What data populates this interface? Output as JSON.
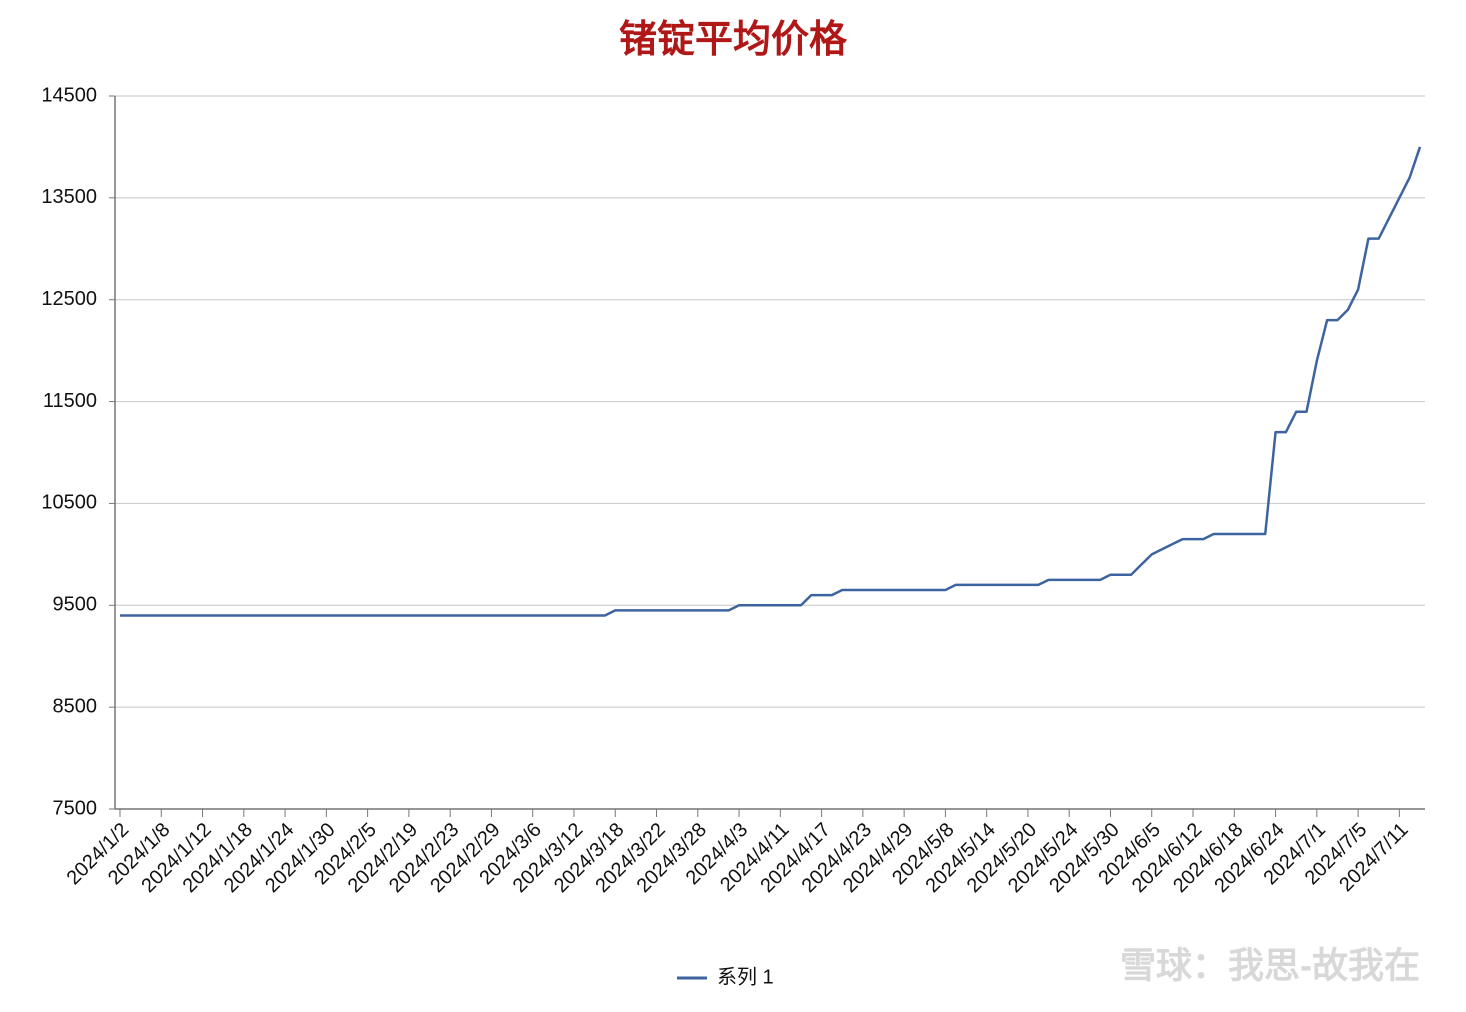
{
  "chart_data": {
    "type": "line",
    "title": "锗锭平均价格",
    "categories": [
      "2024/1/2",
      null,
      null,
      null,
      "2024/1/8",
      null,
      null,
      null,
      "2024/1/12",
      null,
      null,
      null,
      "2024/1/18",
      null,
      null,
      null,
      "2024/1/24",
      null,
      null,
      null,
      "2024/1/30",
      null,
      null,
      null,
      "2024/2/5",
      null,
      null,
      null,
      "2024/2/19",
      null,
      null,
      null,
      "2024/2/23",
      null,
      null,
      null,
      "2024/2/29",
      null,
      null,
      null,
      "2024/3/6",
      null,
      null,
      null,
      "2024/3/12",
      null,
      null,
      null,
      "2024/3/18",
      null,
      null,
      null,
      "2024/3/22",
      null,
      null,
      null,
      "2024/3/28",
      null,
      null,
      null,
      "2024/4/3",
      null,
      null,
      null,
      "2024/4/11",
      null,
      null,
      null,
      "2024/4/17",
      null,
      null,
      null,
      "2024/4/23",
      null,
      null,
      null,
      "2024/4/29",
      null,
      null,
      null,
      "2024/5/8",
      null,
      null,
      null,
      "2024/5/14",
      null,
      null,
      null,
      "2024/5/20",
      null,
      null,
      null,
      "2024/5/24",
      null,
      null,
      null,
      "2024/5/30",
      null,
      null,
      null,
      "2024/6/5",
      null,
      null,
      null,
      "2024/6/12",
      null,
      null,
      null,
      "2024/6/18",
      null,
      null,
      null,
      "2024/6/24",
      null,
      null,
      null,
      "2024/7/1",
      null,
      null,
      null,
      "2024/7/5",
      null,
      null,
      null,
      "2024/7/11",
      null,
      null
    ],
    "series": [
      {
        "name": "系列 1",
        "color": "#3d64a0",
        "values": [
          9400,
          9400,
          9400,
          9400,
          9400,
          9400,
          9400,
          9400,
          9400,
          9400,
          9400,
          9400,
          9400,
          9400,
          9400,
          9400,
          9400,
          9400,
          9400,
          9400,
          9400,
          9400,
          9400,
          9400,
          9400,
          9400,
          9400,
          9400,
          9400,
          9400,
          9400,
          9400,
          9400,
          9400,
          9400,
          9400,
          9400,
          9400,
          9400,
          9400,
          9400,
          9400,
          9400,
          9400,
          9400,
          9400,
          9400,
          9400,
          9450,
          9450,
          9450,
          9450,
          9450,
          9450,
          9450,
          9450,
          9450,
          9450,
          9450,
          9450,
          9500,
          9500,
          9500,
          9500,
          9500,
          9500,
          9500,
          9600,
          9600,
          9600,
          9650,
          9650,
          9650,
          9650,
          9650,
          9650,
          9650,
          9650,
          9650,
          9650,
          9650,
          9700,
          9700,
          9700,
          9700,
          9700,
          9700,
          9700,
          9700,
          9700,
          9750,
          9750,
          9750,
          9750,
          9750,
          9750,
          9800,
          9800,
          9800,
          9900,
          10000,
          10050,
          10100,
          10150,
          10150,
          10150,
          10200,
          10200,
          10200,
          10200,
          10200,
          10200,
          11200,
          11200,
          11400,
          11400,
          11900,
          12300,
          12300,
          12400,
          12600,
          13100,
          13100,
          13300,
          13500,
          13700,
          14000
        ]
      }
    ],
    "ylim": [
      7500,
      14500
    ],
    "yticks": [
      7500,
      8500,
      9500,
      10500,
      11500,
      12500,
      13500,
      14500
    ],
    "grid": true,
    "legend": "bottom"
  },
  "watermark": "雪球：我思-故我在"
}
